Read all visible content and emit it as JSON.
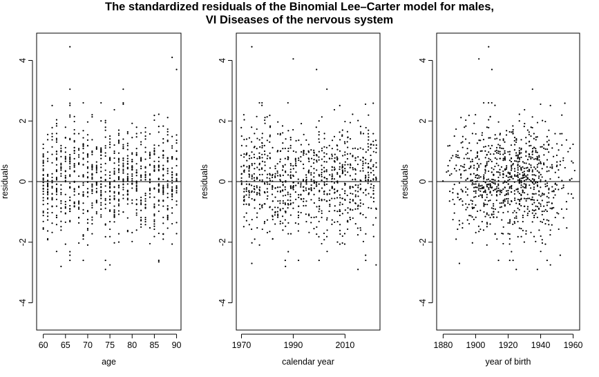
{
  "title": {
    "line1": "The standardized residuals of the Binomial Lee–Carter model for males,",
    "line2": "VI Diseases of the nervous system"
  },
  "chart_data": [
    {
      "type": "scatter",
      "xlabel": "age",
      "ylabel": "residuals",
      "xlim": [
        58.5,
        91
      ],
      "ylim": [
        -4.9,
        4.9
      ],
      "xticks": [
        60,
        65,
        70,
        75,
        80,
        85,
        90
      ],
      "yticks": [
        -4,
        -2,
        0,
        2,
        4
      ],
      "hline": 0,
      "grid": false,
      "note": "residuals for ages 60–90 (one column per age), mostly within [-2.9, 4.5]",
      "extremes": [
        {
          "x": 66,
          "y": 4.45
        },
        {
          "x": 89,
          "y": 4.1
        },
        {
          "x": 90,
          "y": 3.7
        },
        {
          "x": 66,
          "y": 3.05
        },
        {
          "x": 78,
          "y": 3.05
        },
        {
          "x": 64,
          "y": -2.8
        },
        {
          "x": 74,
          "y": -2.9
        },
        {
          "x": 75,
          "y": -2.75
        },
        {
          "x": 86,
          "y": -2.65
        }
      ]
    },
    {
      "type": "scatter",
      "xlabel": "calendar year",
      "ylabel": "residuals",
      "xlim": [
        1968,
        2023.5
      ],
      "ylim": [
        -4.9,
        4.9
      ],
      "xticks": [
        1970,
        1990,
        2010
      ],
      "yticks": [
        -4,
        -2,
        0,
        2,
        4
      ],
      "hline": 0,
      "grid": false,
      "note": "residuals for calendar years 1970–2022 (one column per year)",
      "extremes": [
        {
          "x": 1974,
          "y": 4.45
        },
        {
          "x": 1990,
          "y": 4.05
        },
        {
          "x": 1999,
          "y": 3.7
        },
        {
          "x": 2003,
          "y": 3.05
        },
        {
          "x": 2015,
          "y": -2.9
        },
        {
          "x": 2022,
          "y": -2.75
        },
        {
          "x": 1987,
          "y": -2.8
        },
        {
          "x": 1974,
          "y": -2.7
        }
      ]
    },
    {
      "type": "scatter",
      "xlabel": "year of birth",
      "ylabel": "residuals",
      "xlim": [
        1876,
        1964
      ],
      "ylim": [
        -4.9,
        4.9
      ],
      "xticks": [
        1880,
        1900,
        1920,
        1940,
        1960
      ],
      "yticks": [
        -4,
        -2,
        0,
        2,
        4
      ],
      "hline": 0,
      "grid": false,
      "note": "residuals by year of birth 1880–1962 (calendar year minus age)",
      "extremes": [
        {
          "x": 1908,
          "y": 4.45
        },
        {
          "x": 1902,
          "y": 4.05
        },
        {
          "x": 1910,
          "y": 3.7
        },
        {
          "x": 1935,
          "y": 3.05
        },
        {
          "x": 1925,
          "y": -2.9
        },
        {
          "x": 1938,
          "y": -2.9
        },
        {
          "x": 1946,
          "y": -2.75
        },
        {
          "x": 1890,
          "y": -2.7
        }
      ]
    }
  ]
}
